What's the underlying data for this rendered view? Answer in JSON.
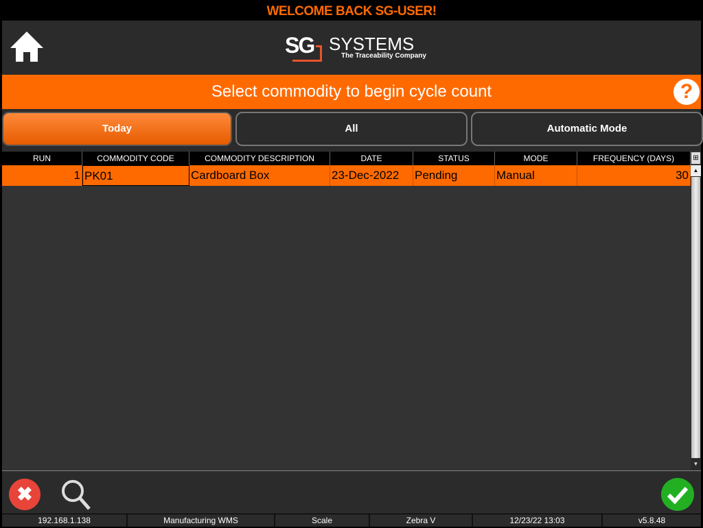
{
  "welcome": "WELCOME BACK SG-USER!",
  "logo": {
    "mark": "SG",
    "name": "SYSTEMS",
    "tagline": "The Traceability Company"
  },
  "banner": {
    "title": "Select commodity to begin cycle count"
  },
  "tabs": [
    {
      "label": "Today",
      "active": true
    },
    {
      "label": "All",
      "active": false
    },
    {
      "label": "Automatic Mode",
      "active": false
    }
  ],
  "table": {
    "columns": [
      "RUN",
      "COMMODITY CODE",
      "COMMODITY DESCRIPTION",
      "DATE",
      "STATUS",
      "MODE",
      "FREQUENCY (DAYS)"
    ],
    "rows": [
      [
        "1",
        "PK01",
        "Cardboard Box",
        "23-Dec-2022",
        "Pending",
        "Manual",
        "30"
      ]
    ]
  },
  "status_bar": [
    "192.168.1.138",
    "Manufacturing WMS",
    "Scale",
    "Zebra V",
    "12/23/22 13:03",
    "v5.8.48"
  ],
  "colors": {
    "accent": "#ff6a00",
    "cancel": "#e8443a",
    "confirm": "#22b022"
  }
}
